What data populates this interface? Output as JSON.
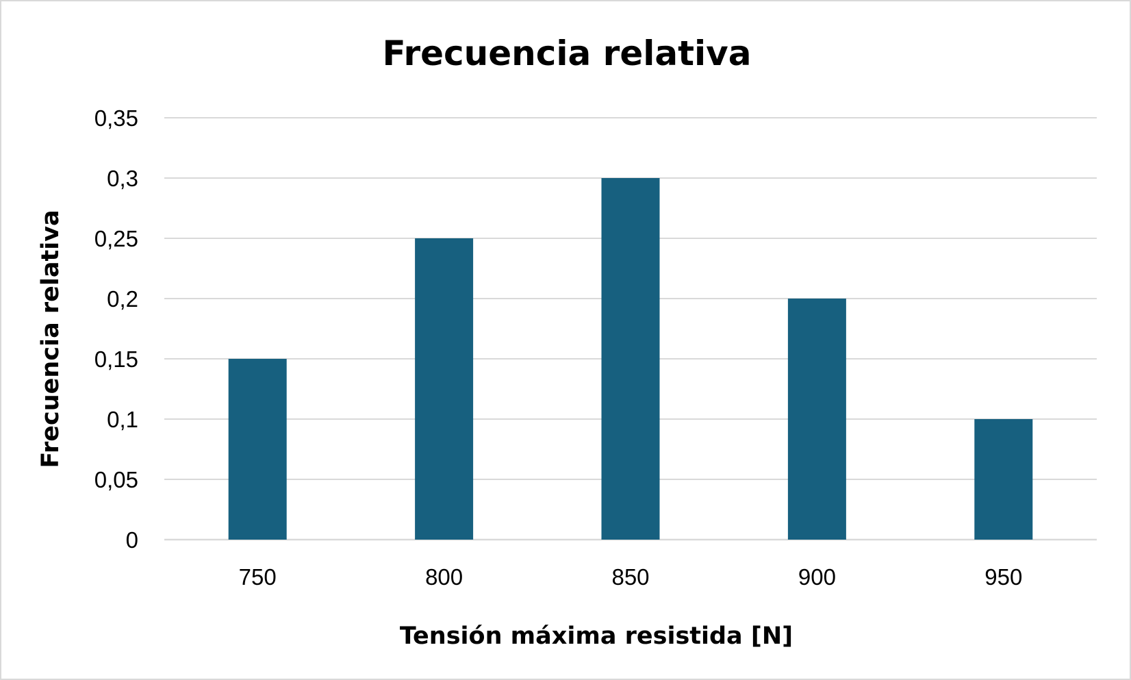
{
  "chart_data": {
    "type": "bar",
    "title": "Frecuencia relativa",
    "xlabel": "Tensión máxima resistida [N]",
    "ylabel": "Frecuencia relativa",
    "categories": [
      "750",
      "800",
      "850",
      "900",
      "950"
    ],
    "values": [
      0.15,
      0.25,
      0.3,
      0.2,
      0.1
    ],
    "ylim": [
      0,
      0.35
    ],
    "yticks": [
      "0",
      "0,05",
      "0,1",
      "0,15",
      "0,2",
      "0,25",
      "0,3",
      "0,35"
    ],
    "grid": true,
    "legend": "none",
    "bar_color": "#17607f",
    "grid_color": "#d9d9d9"
  }
}
